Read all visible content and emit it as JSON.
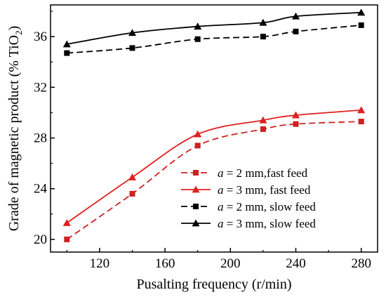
{
  "chart_data": {
    "type": "line",
    "xlabel": "Pusalting frequency (r/min)",
    "ylabel_prefix": "Grade of magnetic product (% TiO",
    "ylabel_sub": "2",
    "ylabel_suffix": ")",
    "xlim": [
      90,
      290
    ],
    "ylim": [
      19,
      38.5
    ],
    "xticks": [
      120,
      160,
      200,
      240,
      280
    ],
    "yticks": [
      20,
      24,
      28,
      32,
      36
    ],
    "legend_position": "center-right",
    "series": [
      {
        "name": "a = 2 mm,fast feed",
        "label_var": "a",
        "label_rest": " = 2 mm,fast feed",
        "color": "#cc2222",
        "line_style": "dashed",
        "marker": "square",
        "x": [
          100,
          140,
          180,
          220,
          240,
          280
        ],
        "y": [
          20.0,
          23.6,
          27.4,
          28.7,
          29.1,
          29.3
        ]
      },
      {
        "name": "a = 3 mm, fast feed",
        "label_var": "a",
        "label_rest": " = 3 mm, fast feed",
        "color": "#e02020",
        "line_style": "solid",
        "marker": "triangle",
        "x": [
          100,
          140,
          180,
          220,
          240,
          280
        ],
        "y": [
          21.3,
          24.9,
          28.3,
          29.4,
          29.8,
          30.2
        ]
      },
      {
        "name": "a = 2 mm, slow feed",
        "label_var": "a",
        "label_rest": " = 2 mm, slow feed",
        "color": "#000000",
        "line_style": "dashed",
        "marker": "square",
        "x": [
          100,
          140,
          180,
          220,
          240,
          280
        ],
        "y": [
          34.7,
          35.1,
          35.8,
          36.0,
          36.4,
          36.9
        ]
      },
      {
        "name": "a = 3 mm, slow feed",
        "label_var": "a",
        "label_rest": " = 3 mm, slow feed",
        "color": "#000000",
        "line_style": "solid",
        "marker": "triangle",
        "x": [
          100,
          140,
          180,
          220,
          240,
          280
        ],
        "y": [
          35.4,
          36.3,
          36.8,
          37.1,
          37.6,
          37.9
        ]
      }
    ]
  }
}
